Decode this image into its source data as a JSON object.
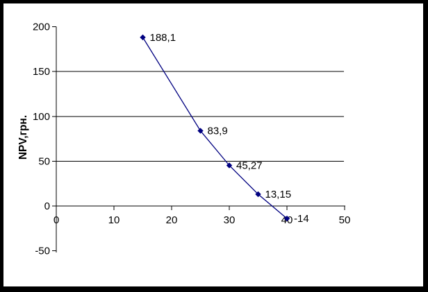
{
  "chart_data": {
    "type": "line",
    "title": "",
    "ylabel": "NPV,грн.",
    "xlabel": "",
    "x": [
      15,
      25,
      30,
      35,
      40
    ],
    "y": [
      188.1,
      83.9,
      45.27,
      13.15,
      -14
    ],
    "point_labels": [
      "188,1",
      "83,9",
      "45,27",
      "13,15",
      "-14"
    ],
    "xlim": [
      0,
      50
    ],
    "ylim": [
      -50,
      200
    ],
    "x_ticks": [
      0,
      10,
      20,
      30,
      40,
      50
    ],
    "y_ticks": [
      -50,
      0,
      50,
      100,
      150,
      200
    ],
    "x_tick_labels": [
      "0",
      "10",
      "20",
      "30",
      "40",
      "50"
    ],
    "y_tick_labels": [
      "-50",
      "0",
      "50",
      "100",
      "150",
      "200"
    ],
    "gridline_values": [
      50,
      100,
      150
    ],
    "legend_position": "none",
    "grid": "horizontal-only",
    "marker": "diamond",
    "colors": {
      "series": "#000080",
      "axis": "#000000",
      "grid": "#000000",
      "text": "#000000",
      "background": "#ffffff",
      "frame": "#000000"
    }
  }
}
